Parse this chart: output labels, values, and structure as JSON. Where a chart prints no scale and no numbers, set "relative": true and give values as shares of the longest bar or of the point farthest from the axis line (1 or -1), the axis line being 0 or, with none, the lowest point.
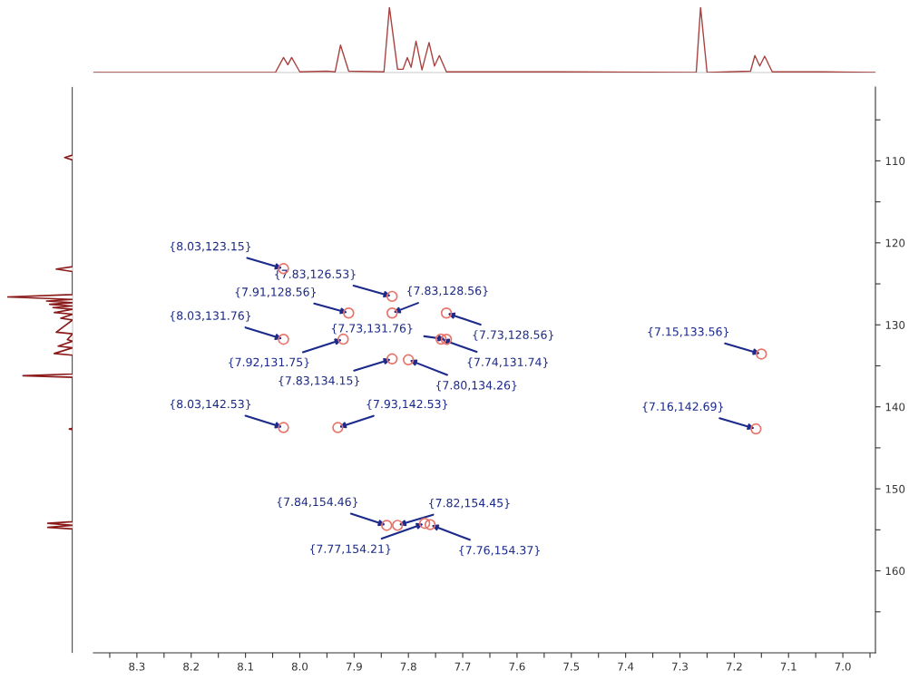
{
  "chart_data": [
    {
      "type": "line",
      "relative": true,
      "tick_labels": false,
      "xlim": [
        8.38,
        6.94
      ],
      "x": [
        8.38,
        8.045,
        8.03,
        8.022,
        8.015,
        8.0,
        7.95,
        7.935,
        7.925,
        7.91,
        7.845,
        7.835,
        7.82,
        7.81,
        7.802,
        7.795,
        7.786,
        7.775,
        7.762,
        7.752,
        7.743,
        7.73,
        7.52,
        7.27,
        7.262,
        7.25,
        7.17,
        7.162,
        7.153,
        7.144,
        7.13,
        7.04,
        6.94
      ],
      "series": [
        {
          "color": "#a8423f",
          "values": [
            0,
            0,
            0.23,
            0.12,
            0.23,
            0.01,
            0.02,
            0.01,
            0.42,
            0.02,
            0.01,
            1,
            0.05,
            0.05,
            0.23,
            0.08,
            0.48,
            0.04,
            0.46,
            0.1,
            0.26,
            0.01,
            0.01,
            0,
            1,
            0,
            0.02,
            0.26,
            0.1,
            0.25,
            0.01,
            0.01,
            0
          ]
        }
      ]
    },
    {
      "type": "line",
      "relative": true,
      "orientation": "horizontal",
      "tick_labels": false,
      "ylim": [
        170,
        101
      ],
      "x": [
        101,
        109.3,
        109.6,
        109.9,
        122.9,
        123.2,
        123.5,
        126.3,
        126.6,
        126.9,
        127.1,
        127.3,
        127.5,
        127.7,
        127.9,
        128.1,
        128.5,
        128.7,
        129.2,
        129.4,
        130.9,
        131.1,
        131.8,
        132.0,
        132.6,
        132.8,
        133.5,
        133.7,
        136.0,
        136.2,
        136.4,
        142.6,
        142.7,
        142.8,
        154.0,
        154.2,
        154.45,
        154.7,
        154.9,
        170
      ],
      "series": [
        {
          "color": "#8b1a1a",
          "values": [
            0,
            0,
            -0.12,
            0,
            0,
            -0.25,
            0,
            0,
            -1,
            0,
            -0.4,
            0,
            -0.35,
            0,
            -0.3,
            0,
            -0.28,
            0,
            -0.18,
            0,
            -0.25,
            0,
            -0.08,
            0,
            -0.22,
            0,
            -0.28,
            0,
            0,
            -0.76,
            0,
            0,
            -0.05,
            0,
            0,
            -0.38,
            0,
            -0.38,
            0,
            0
          ]
        }
      ]
    },
    {
      "type": "scatter",
      "marker": "circle",
      "xlim": [
        8.38,
        6.94
      ],
      "ylim": [
        170,
        101
      ],
      "xticks": [
        {
          "value": 8.35,
          "label": null
        },
        8.3,
        {
          "value": 8.25,
          "label": null
        },
        8.2,
        {
          "value": 8.15,
          "label": null
        },
        8.1,
        {
          "value": 8.05,
          "label": null
        },
        {
          "value": 8.0,
          "label": "8.0"
        },
        {
          "value": 7.95,
          "label": null
        },
        7.9,
        {
          "value": 7.85,
          "label": null
        },
        7.8,
        {
          "value": 7.75,
          "label": null
        },
        7.7,
        {
          "value": 7.65,
          "label": null
        },
        7.6,
        {
          "value": 7.55,
          "label": null
        },
        7.5,
        {
          "value": 7.45,
          "label": null
        },
        7.4,
        {
          "value": 7.35,
          "label": null
        },
        7.3,
        {
          "value": 7.25,
          "label": null
        },
        7.2,
        {
          "value": 7.15,
          "label": null
        },
        7.1,
        {
          "value": 7.05,
          "label": null
        },
        {
          "value": 7.0,
          "label": "7.0"
        },
        {
          "value": 6.95,
          "label": null
        }
      ],
      "yticks": [
        {
          "value": 105,
          "label": null
        },
        110,
        {
          "value": 115,
          "label": null
        },
        120,
        {
          "value": 125,
          "label": null
        },
        130,
        {
          "value": 135,
          "label": null
        },
        140,
        {
          "value": 145,
          "label": null
        },
        150,
        {
          "value": 155,
          "label": null
        },
        160,
        {
          "value": 165,
          "label": null
        }
      ],
      "x": [
        8.03,
        7.83,
        7.91,
        7.83,
        7.73,
        7.73,
        8.03,
        7.92,
        7.74,
        7.83,
        7.8,
        7.15,
        8.03,
        7.93,
        7.16,
        7.84,
        7.82,
        7.77,
        7.76
      ],
      "series": [
        {
          "color": "#e8736a",
          "values": [
            123.15,
            126.53,
            128.56,
            128.56,
            131.76,
            128.56,
            131.76,
            131.75,
            131.74,
            134.15,
            134.26,
            133.56,
            142.53,
            142.53,
            142.69,
            154.46,
            154.45,
            154.21,
            154.37
          ]
        }
      ],
      "annotations": [
        {
          "text": "{8.03,123.15}",
          "x": 8.03,
          "y": 123.15
        },
        {
          "text": "{7.83,126.53}",
          "x": 7.83,
          "y": 126.53
        },
        {
          "text": "{7.91,128.56}",
          "x": 7.91,
          "y": 128.56
        },
        {
          "text": "{7.83,128.56}",
          "x": 7.83,
          "y": 128.56
        },
        {
          "text": "{7.73,131.76}",
          "x": 7.73,
          "y": 131.76
        },
        {
          "text": "{7.73,128.56}",
          "x": 7.73,
          "y": 128.56
        },
        {
          "text": "{8.03,131.76}",
          "x": 8.03,
          "y": 131.76
        },
        {
          "text": "{7.92,131.75}",
          "x": 7.92,
          "y": 131.75
        },
        {
          "text": "{7.74,131.74}",
          "x": 7.74,
          "y": 131.74
        },
        {
          "text": "{7.83,134.15}",
          "x": 7.83,
          "y": 134.15
        },
        {
          "text": "{7.80,134.26}",
          "x": 7.8,
          "y": 134.26
        },
        {
          "text": "{7.15,133.56}",
          "x": 7.15,
          "y": 133.56
        },
        {
          "text": "{8.03,142.53}",
          "x": 8.03,
          "y": 142.53
        },
        {
          "text": "{7.93,142.53}",
          "x": 7.93,
          "y": 142.53
        },
        {
          "text": "{7.16,142.69}",
          "x": 7.16,
          "y": 142.69
        },
        {
          "text": "{7.84,154.46}",
          "x": 7.84,
          "y": 154.46
        },
        {
          "text": "{7.82,154.45}",
          "x": 7.82,
          "y": 154.45
        },
        {
          "text": "{7.77,154.21}",
          "x": 7.77,
          "y": 154.21
        },
        {
          "text": "{7.76,154.37}",
          "x": 7.76,
          "y": 154.37
        }
      ]
    }
  ]
}
